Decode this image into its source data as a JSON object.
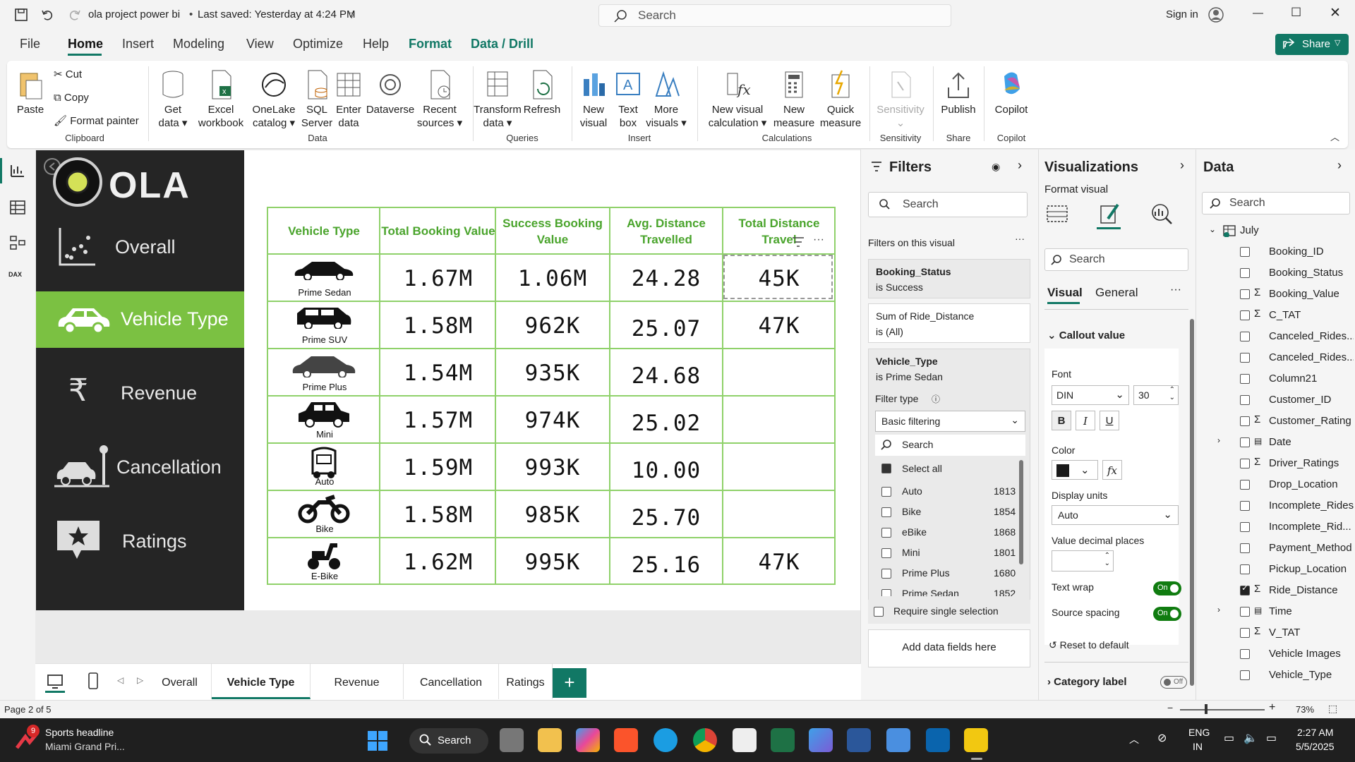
{
  "titlebar": {
    "file_name": "ola project power bi",
    "saved": "Last saved: Yesterday at 4:24 PM",
    "search_placeholder": "Search",
    "sign_in": "Sign in"
  },
  "menu": [
    "File",
    "Home",
    "Insert",
    "Modeling",
    "View",
    "Optimize",
    "Help",
    "Format",
    "Data / Drill"
  ],
  "share_label": "Share",
  "ribbon": {
    "clipboard": {
      "paste": "Paste",
      "cut": "Cut",
      "copy": "Copy",
      "format_painter": "Format painter",
      "group": "Clipboard"
    },
    "data": {
      "get_data": "Get data",
      "excel": "Excel workbook",
      "onelake": "OneLake catalog",
      "sql": "SQL Server",
      "enter": "Enter data",
      "dataverse": "Dataverse",
      "recent": "Recent sources",
      "group": "Data"
    },
    "queries": {
      "transform": "Transform data",
      "refresh": "Refresh",
      "group": "Queries"
    },
    "insert": {
      "new_visual": "New visual",
      "text_box": "Text box",
      "more_visuals": "More visuals",
      "group": "Insert"
    },
    "calculations": {
      "new_visual_calc": "New visual calculation",
      "new_measure": "New measure",
      "quick_measure": "Quick measure",
      "group": "Calculations"
    },
    "sensitivity": {
      "label": "Sensitivity",
      "group": "Sensitivity"
    },
    "share": {
      "publish": "Publish",
      "group": "Share"
    },
    "copilot": {
      "label": "Copilot",
      "group": "Copilot"
    }
  },
  "report": {
    "logo_text": "OLA",
    "nav": [
      "Overall",
      "Vehicle Type",
      "Revenue",
      "Cancellation",
      "Ratings"
    ],
    "active_nav": "Vehicle Type",
    "headers": [
      "Vehicle Type",
      "Total Booking Value",
      "Success Booking Value",
      "Avg. Distance Travelled",
      "Total Distance Travel"
    ],
    "rows": [
      {
        "vehicle": "Prime Sedan",
        "total": "1.67M",
        "success": "1.06M",
        "avg": "24.28",
        "dist": "45K"
      },
      {
        "vehicle": "Prime SUV",
        "total": "1.58M",
        "success": "962K",
        "avg": "25.07",
        "dist": "47K"
      },
      {
        "vehicle": "Prime Plus",
        "total": "1.54M",
        "success": "935K",
        "avg": "24.68",
        "dist": ""
      },
      {
        "vehicle": "Mini",
        "total": "1.57M",
        "success": "974K",
        "avg": "25.02",
        "dist": ""
      },
      {
        "vehicle": "Auto",
        "total": "1.59M",
        "success": "993K",
        "avg": "10.00",
        "dist": ""
      },
      {
        "vehicle": "Bike",
        "total": "1.58M",
        "success": "985K",
        "avg": "25.70",
        "dist": ""
      },
      {
        "vehicle": "E-Bike",
        "total": "1.62M",
        "success": "995K",
        "avg": "25.16",
        "dist": "47K"
      }
    ],
    "accent": "#7bc142"
  },
  "filters": {
    "title": "Filters",
    "search": "Search",
    "on_visual": "Filters on this visual",
    "cards": [
      {
        "field": "Booking_Status",
        "state": "is Success"
      },
      {
        "field": "Sum of Ride_Distance",
        "state": "is (All)"
      },
      {
        "field": "Vehicle_Type",
        "state": "is Prime Sedan"
      }
    ],
    "filter_type_label": "Filter type",
    "filter_type": "Basic filtering",
    "list_search": "Search",
    "select_all": "Select all",
    "items": [
      {
        "name": "Auto",
        "count": "1813"
      },
      {
        "name": "Bike",
        "count": "1854"
      },
      {
        "name": "eBike",
        "count": "1868"
      },
      {
        "name": "Mini",
        "count": "1801"
      },
      {
        "name": "Prime Plus",
        "count": "1680"
      },
      {
        "name": "Prime Sedan",
        "count": "1852"
      }
    ],
    "require_single": "Require single selection",
    "add_fields": "Add data fields here"
  },
  "viz": {
    "title": "Visualizations",
    "format_visual": "Format visual",
    "search": "Search",
    "tab_visual": "Visual",
    "tab_general": "General",
    "callout": "Callout value",
    "font_label": "Font",
    "font": "DIN",
    "size": "30",
    "color_label": "Color",
    "display_units_label": "Display units",
    "display_units": "Auto",
    "decimal_label": "Value decimal places",
    "text_wrap": "Text wrap",
    "source_spacing": "Source spacing",
    "on": "On",
    "off": "Off",
    "reset": "Reset to default",
    "category_label": "Category label"
  },
  "data_pane": {
    "title": "Data",
    "search": "Search",
    "table": "July",
    "fields": [
      {
        "name": "Booking_ID",
        "sigma": false,
        "checked": false
      },
      {
        "name": "Booking_Status",
        "sigma": false,
        "checked": false
      },
      {
        "name": "Booking_Value",
        "sigma": true,
        "checked": false
      },
      {
        "name": "C_TAT",
        "sigma": true,
        "checked": false
      },
      {
        "name": "Canceled_Rides...",
        "sigma": false,
        "checked": false
      },
      {
        "name": "Canceled_Rides...",
        "sigma": false,
        "checked": false
      },
      {
        "name": "Column21",
        "sigma": false,
        "checked": false
      },
      {
        "name": "Customer_ID",
        "sigma": false,
        "checked": false
      },
      {
        "name": "Customer_Rating",
        "sigma": true,
        "checked": false
      },
      {
        "name": "Date",
        "sigma": false,
        "checked": false
      },
      {
        "name": "Driver_Ratings",
        "sigma": true,
        "checked": false
      },
      {
        "name": "Drop_Location",
        "sigma": false,
        "checked": false
      },
      {
        "name": "Incomplete_Rides",
        "sigma": false,
        "checked": false
      },
      {
        "name": "Incomplete_Rid...",
        "sigma": false,
        "checked": false
      },
      {
        "name": "Payment_Method",
        "sigma": false,
        "checked": false
      },
      {
        "name": "Pickup_Location",
        "sigma": false,
        "checked": false
      },
      {
        "name": "Ride_Distance",
        "sigma": true,
        "checked": true
      },
      {
        "name": "Time",
        "sigma": false,
        "checked": false
      },
      {
        "name": "V_TAT",
        "sigma": true,
        "checked": false
      },
      {
        "name": "Vehicle Images",
        "sigma": false,
        "checked": false
      },
      {
        "name": "Vehicle_Type",
        "sigma": false,
        "checked": false
      }
    ]
  },
  "tabs": [
    "Overall",
    "Vehicle Type",
    "Revenue",
    "Cancellation",
    "Ratings"
  ],
  "active_tab": "Vehicle Type",
  "status": {
    "page": "Page 2 of 5",
    "zoom": "73%"
  },
  "taskbar": {
    "news_title": "Sports headline",
    "news_sub": "Miami Grand Pri...",
    "badge": "9",
    "search": "Search",
    "lang1": "ENG",
    "lang2": "IN",
    "time": "2:27 AM",
    "date": "5/5/2025"
  }
}
